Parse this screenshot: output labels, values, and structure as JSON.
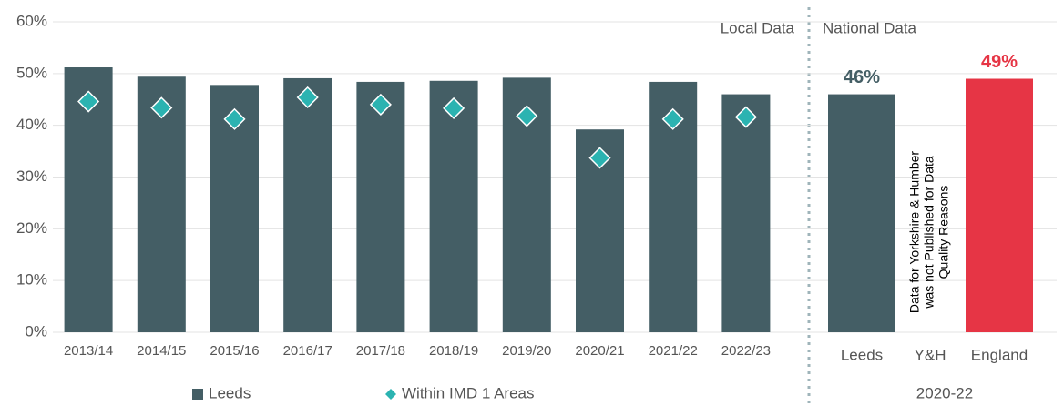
{
  "chart_data": [
    {
      "type": "bar",
      "annotation": "Local Data",
      "categories": [
        "2013/14",
        "2014/15",
        "2015/16",
        "2016/17",
        "2017/18",
        "2018/19",
        "2019/20",
        "2020/21",
        "2021/22",
        "2022/23"
      ],
      "series": [
        {
          "name": "Leeds",
          "type": "bar",
          "color": "#445e65",
          "values": [
            51.2,
            49.4,
            47.8,
            49.1,
            48.4,
            48.6,
            49.2,
            39.2,
            48.4,
            46.0
          ]
        },
        {
          "name": "Within IMD 1 Areas",
          "type": "scatter",
          "marker": "diamond",
          "color": "#2bb3b1",
          "values": [
            44.6,
            43.4,
            41.2,
            45.4,
            44.0,
            43.3,
            41.8,
            33.7,
            41.2,
            41.6
          ]
        }
      ],
      "ylim": [
        0,
        60
      ],
      "yticks": [
        {
          "value": 0,
          "label": "0%"
        },
        {
          "value": 10,
          "label": "10%"
        },
        {
          "value": 20,
          "label": "20%"
        },
        {
          "value": 30,
          "label": "30%"
        },
        {
          "value": 40,
          "label": "40%"
        },
        {
          "value": 50,
          "label": "50%"
        },
        {
          "value": 60,
          "label": "60%"
        }
      ],
      "grid": true,
      "legend": "bottom"
    },
    {
      "type": "bar",
      "annotation": "National Data",
      "xlabel": "2020-22",
      "categories": [
        "Leeds",
        "Y&H",
        "England"
      ],
      "values": [
        46,
        null,
        49
      ],
      "value_labels": [
        "46%",
        null,
        "49%"
      ],
      "colors": [
        "#445e65",
        null,
        "#e63545"
      ],
      "note_lines": [
        "Data for Yorkshire & Humber",
        "was not Published for Data",
        "Quality Reasons"
      ],
      "ylim": [
        0,
        60
      ]
    }
  ]
}
